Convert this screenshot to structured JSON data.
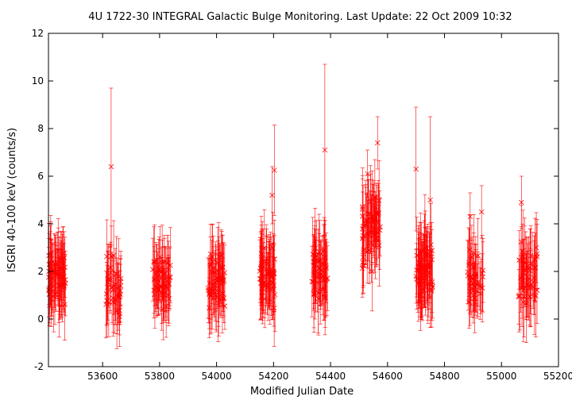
{
  "chart_data": {
    "type": "scatter",
    "title": "4U 1722-30   INTEGRAL Galactic Bulge Monitoring.  Last Update: 22 Oct 2009 10:32",
    "xlabel": "Modified Julian Date",
    "ylabel": "ISGRI 40-100 keV (counts/s)",
    "xlim": [
      53410,
      55200
    ],
    "ylim": [
      -2,
      12
    ],
    "xticks": [
      53600,
      53800,
      54000,
      54200,
      54400,
      54600,
      54800,
      55000,
      55200
    ],
    "yticks": [
      -2,
      0,
      2,
      4,
      6,
      8,
      10,
      12
    ],
    "grid": false,
    "marker_color": "#ff0000",
    "marker": "x with vertical error bars",
    "visibility_windows": [
      {
        "start": 53410,
        "end": 53470,
        "mean": 1.8,
        "spread": 0.9,
        "err": 1.3,
        "n": 70
      },
      {
        "start": 53610,
        "end": 53665,
        "mean": 1.4,
        "spread": 0.9,
        "err": 1.3,
        "n": 40
      },
      {
        "start": 53775,
        "end": 53840,
        "mean": 1.5,
        "spread": 0.9,
        "err": 1.3,
        "n": 55
      },
      {
        "start": 53970,
        "end": 54030,
        "mean": 1.6,
        "spread": 0.9,
        "err": 1.3,
        "n": 60
      },
      {
        "start": 54150,
        "end": 54205,
        "mean": 1.8,
        "spread": 1.0,
        "err": 1.4,
        "n": 60
      },
      {
        "start": 54335,
        "end": 54390,
        "mean": 1.9,
        "spread": 1.0,
        "err": 1.4,
        "n": 55
      },
      {
        "start": 54510,
        "end": 54575,
        "mean": 3.8,
        "spread": 1.2,
        "err": 1.4,
        "n": 60
      },
      {
        "start": 54700,
        "end": 54760,
        "mean": 2.0,
        "spread": 1.0,
        "err": 1.4,
        "n": 70
      },
      {
        "start": 54880,
        "end": 54935,
        "mean": 1.8,
        "spread": 0.9,
        "err": 1.3,
        "n": 40
      },
      {
        "start": 55060,
        "end": 55125,
        "mean": 1.8,
        "spread": 1.0,
        "err": 1.4,
        "n": 50
      }
    ],
    "notable_points": [
      {
        "x": 53630,
        "y": 6.4,
        "yerr": 3.3
      },
      {
        "x": 54203,
        "y": 6.25,
        "yerr": 1.9
      },
      {
        "x": 54380,
        "y": 7.1,
        "yerr": 3.6
      },
      {
        "x": 54565,
        "y": 7.4,
        "yerr": 1.1
      },
      {
        "x": 54700,
        "y": 6.3,
        "yerr": 2.6
      },
      {
        "x": 54750,
        "y": 5.0,
        "yerr": 3.5
      },
      {
        "x": 55070,
        "y": 4.9,
        "yerr": 1.1
      },
      {
        "x": 54930,
        "y": 4.5,
        "yerr": 1.1
      },
      {
        "x": 54890,
        "y": 4.3,
        "yerr": 1.0
      },
      {
        "x": 54530,
        "y": 6.1,
        "yerr": 1.0
      },
      {
        "x": 54195,
        "y": 5.2,
        "yerr": 1.2
      }
    ]
  }
}
